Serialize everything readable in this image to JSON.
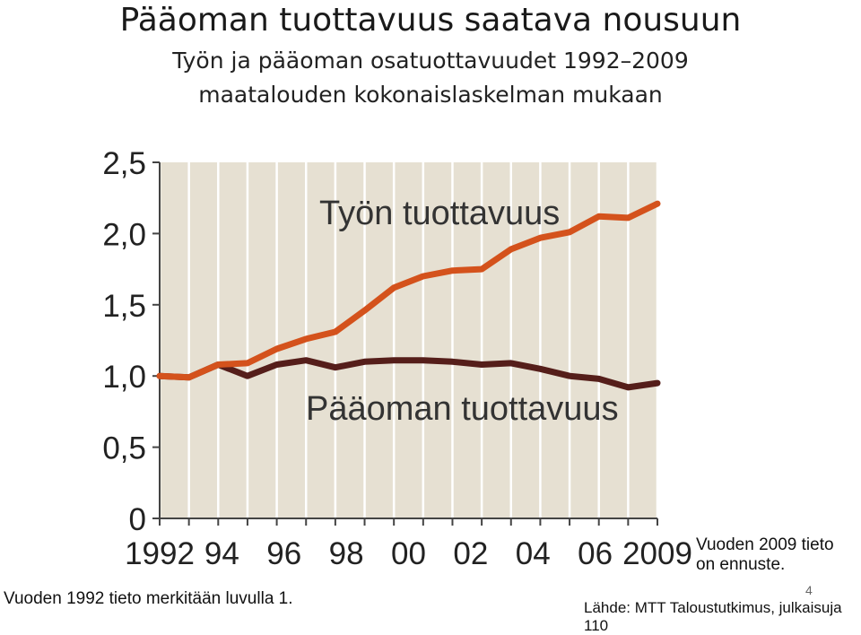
{
  "slide": {
    "title": "Pääoman tuottavuus saatava nousuun",
    "subtitle_line1": "Työn ja pääoman osatuottavuudet 1992–2009",
    "subtitle_line2": "maatalouden kokonaislaskelman mukaan",
    "forecast_note_line1": "Vuoden 2009 tieto",
    "forecast_note_line2": "on ennuste.",
    "base_year_note": "Vuoden 1992 tieto merkitään luvulla 1.",
    "source": "Lähde: MTT Taloustutkimus, julkaisuja 110",
    "page_number": "4"
  },
  "chart_data": {
    "type": "line",
    "x": [
      1992,
      1993,
      1994,
      1995,
      1996,
      1997,
      1998,
      1999,
      2000,
      2001,
      2002,
      2003,
      2004,
      2005,
      2006,
      2007,
      2008,
      2009
    ],
    "x_tick_labels": [
      "1992",
      "94",
      "96",
      "98",
      "00",
      "02",
      "04",
      "06",
      "2009"
    ],
    "y_tick_labels": [
      "0",
      "0,5",
      "1,0",
      "1,5",
      "2,0",
      "2,5"
    ],
    "ylim": [
      0,
      2.5
    ],
    "grid": "vertical",
    "plot_background": "#e6e0d2",
    "series": [
      {
        "name": "Työn tuottavuus",
        "color": "#d4521c",
        "values": [
          1.0,
          0.99,
          1.08,
          1.09,
          1.19,
          1.26,
          1.31,
          1.46,
          1.62,
          1.7,
          1.74,
          1.75,
          1.89,
          1.97,
          2.01,
          2.12,
          2.11,
          2.21
        ]
      },
      {
        "name": "Pääoman tuottavuus",
        "color": "#551e1a",
        "values": [
          1.0,
          0.99,
          1.08,
          1.0,
          1.08,
          1.11,
          1.06,
          1.1,
          1.11,
          1.11,
          1.1,
          1.08,
          1.09,
          1.05,
          1.0,
          0.98,
          0.92,
          0.95
        ]
      }
    ]
  }
}
